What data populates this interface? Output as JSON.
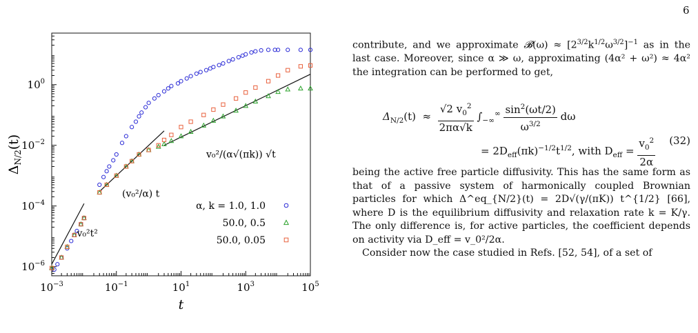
{
  "page": {
    "number": "6"
  },
  "figure": {
    "chart_data": {
      "type": "scatter",
      "xscale": "log",
      "yscale": "log",
      "xlim": [
        0.001,
        100000
      ],
      "ylim": [
        5e-07,
        50
      ],
      "xlabel": "t",
      "ylabel": "Δ_{N/2}(t)",
      "x_ticks": [
        "10^{-3}",
        "10^{-1}",
        "10^{1}",
        "10^{3}",
        "10^{5}"
      ],
      "y_ticks": [
        "10^{-6}",
        "10^{-4}",
        "10^{-2}",
        "10^{0}"
      ],
      "series": [
        {
          "name": "α, k = 1.0, 1.0",
          "marker": "circle",
          "color": "#2b2bd6",
          "points": [
            [
              0.0012,
              8e-07
            ],
            [
              0.0015,
              1.2e-06
            ],
            [
              0.002,
              2e-06
            ],
            [
              0.003,
              4e-06
            ],
            [
              0.004,
              7e-06
            ],
            [
              0.005,
              1.1e-05
            ],
            [
              0.006,
              1.5e-05
            ],
            [
              0.008,
              2.5e-05
            ],
            [
              0.01,
              4e-05
            ],
            [
              0.03,
              0.0005
            ],
            [
              0.04,
              0.0009
            ],
            [
              0.05,
              0.0014
            ],
            [
              0.06,
              0.002
            ],
            [
              0.08,
              0.0032
            ],
            [
              0.1,
              0.005
            ],
            [
              0.15,
              0.012
            ],
            [
              0.2,
              0.02
            ],
            [
              0.3,
              0.04
            ],
            [
              0.4,
              0.06
            ],
            [
              0.5,
              0.09
            ],
            [
              0.6,
              0.12
            ],
            [
              0.8,
              0.18
            ],
            [
              1,
              0.25
            ],
            [
              1.5,
              0.35
            ],
            [
              2,
              0.45
            ],
            [
              3,
              0.6
            ],
            [
              4,
              0.75
            ],
            [
              5,
              0.9
            ],
            [
              8,
              1.1
            ],
            [
              10,
              1.3
            ],
            [
              15,
              1.6
            ],
            [
              20,
              1.9
            ],
            [
              30,
              2.3
            ],
            [
              40,
              2.6
            ],
            [
              60,
              3.0
            ],
            [
              80,
              3.4
            ],
            [
              100,
              3.8
            ],
            [
              150,
              4.4
            ],
            [
              200,
              5.0
            ],
            [
              300,
              6.0
            ],
            [
              400,
              6.8
            ],
            [
              600,
              8.0
            ],
            [
              800,
              9.0
            ],
            [
              1000,
              10
            ],
            [
              1500,
              11.5
            ],
            [
              2000,
              12.5
            ],
            [
              3000,
              13.5
            ],
            [
              5000,
              14
            ],
            [
              8000,
              14
            ],
            [
              10000,
              14
            ],
            [
              20000,
              14
            ],
            [
              50000,
              14
            ],
            [
              100000,
              14
            ]
          ]
        },
        {
          "name": "50.0, 0.5",
          "marker": "triangle",
          "color": "#2aa12a",
          "points": [
            [
              0.001,
              9e-07
            ],
            [
              0.002,
              2e-06
            ],
            [
              0.003,
              4.5e-06
            ],
            [
              0.005,
              1.1e-05
            ],
            [
              0.008,
              2.5e-05
            ],
            [
              0.01,
              4e-05
            ],
            [
              0.03,
              0.00028
            ],
            [
              0.05,
              0.0005
            ],
            [
              0.1,
              0.001
            ],
            [
              0.2,
              0.002
            ],
            [
              0.3,
              0.003
            ],
            [
              0.5,
              0.005
            ],
            [
              1,
              0.007
            ],
            [
              2,
              0.009
            ],
            [
              3,
              0.011
            ],
            [
              5,
              0.014
            ],
            [
              10,
              0.02
            ],
            [
              20,
              0.028
            ],
            [
              50,
              0.045
            ],
            [
              100,
              0.065
            ],
            [
              200,
              0.09
            ],
            [
              500,
              0.14
            ],
            [
              1000,
              0.2
            ],
            [
              2000,
              0.28
            ],
            [
              5000,
              0.42
            ],
            [
              10000,
              0.58
            ],
            [
              20000,
              0.7
            ],
            [
              50000,
              0.75
            ],
            [
              100000,
              0.75
            ]
          ]
        },
        {
          "name": "50.0, 0.05",
          "marker": "square",
          "color": "#e8603c",
          "points": [
            [
              0.001,
              9e-07
            ],
            [
              0.002,
              2e-06
            ],
            [
              0.003,
              4.5e-06
            ],
            [
              0.005,
              1.1e-05
            ],
            [
              0.008,
              2.5e-05
            ],
            [
              0.01,
              4e-05
            ],
            [
              0.03,
              0.00028
            ],
            [
              0.05,
              0.0005
            ],
            [
              0.1,
              0.001
            ],
            [
              0.2,
              0.002
            ],
            [
              0.3,
              0.003
            ],
            [
              0.5,
              0.005
            ],
            [
              1,
              0.007
            ],
            [
              2,
              0.01
            ],
            [
              3,
              0.015
            ],
            [
              5,
              0.022
            ],
            [
              10,
              0.04
            ],
            [
              20,
              0.06
            ],
            [
              50,
              0.1
            ],
            [
              100,
              0.15
            ],
            [
              200,
              0.22
            ],
            [
              500,
              0.35
            ],
            [
              1000,
              0.55
            ],
            [
              2000,
              0.8
            ],
            [
              5000,
              1.3
            ],
            [
              10000,
              2.0
            ],
            [
              20000,
              3.0
            ],
            [
              50000,
              4.0
            ],
            [
              100000,
              4.3
            ]
          ]
        }
      ],
      "annotations": [
        "v_0^2 t^2",
        "v_0^2/α t",
        "v_0^2/(α√(πk)) √t"
      ]
    }
  },
  "text": {
    "p1a": "contribute, and we approximate ",
    "p1b": " as in the last case. Moreover, since α ≫ ω, approximating (4α² + ω²) ≈ 4α² the integration can be performed to get,",
    "eq_line1_lhs": "Δ",
    "eq_line2": "= 2D",
    "eq_number": "(32)",
    "p2": "being the active free particle diffusivity. This has the same form as that of a passive system of harmonically coupled Brownian particles for which Δ^eq_{N/2}(t) = 2D√(γ/(πK)) t^{1/2} [66], where D is the equilibrium diffusivity and relaxation rate k = K/γ. The only difference is, for active particles, the coefficient depends on activity via D_eff = v_0²/2α.",
    "p3": "Consider now the case studied in Refs. [52, 54], of a set of"
  }
}
